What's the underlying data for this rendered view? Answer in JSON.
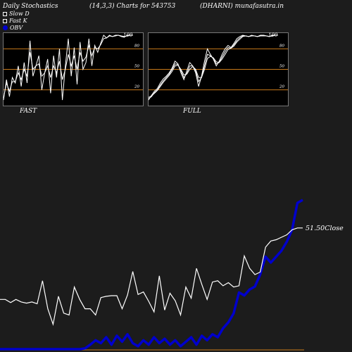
{
  "header": {
    "title": "Daily Stochastics",
    "params": "(14,3,3) Charts for 543753",
    "site": "(DHARNI) munafasutra.in"
  },
  "legend": [
    {
      "label": "Slow  D",
      "color": "#ffffff",
      "shape": "square-outline"
    },
    {
      "label": "Fast K",
      "color": "#ffffff",
      "shape": "square-outline"
    },
    {
      "label": "OBV",
      "color": "#0000cc",
      "shape": "dot"
    }
  ],
  "colors": {
    "background": "#1c1c1c",
    "panel": "#000000",
    "level_line": "#c87a1a",
    "stoch_line": "#ffffff",
    "obv_line": "#0000cc",
    "price_line": "#ffffff"
  },
  "chart_data": [
    {
      "type": "line",
      "title": "FAST",
      "ylim": [
        0,
        100
      ],
      "levels": [
        20,
        50,
        80
      ],
      "tick_labels": [
        "100",
        "80",
        "50",
        "20"
      ],
      "series": [
        {
          "values": [
            5,
            35,
            10,
            38,
            30,
            55,
            25,
            60,
            30,
            92,
            40,
            55,
            70,
            20,
            45,
            65,
            15,
            70,
            38,
            80,
            5,
            55,
            95,
            40,
            82,
            28,
            90,
            50,
            60,
            95,
            55,
            85,
            75,
            88,
            100,
            96,
            100,
            98,
            100,
            100,
            98,
            97,
            100,
            100,
            100
          ]
        },
        {
          "values": [
            8,
            30,
            18,
            32,
            32,
            45,
            35,
            50,
            40,
            75,
            50,
            55,
            58,
            40,
            45,
            55,
            38,
            55,
            45,
            62,
            35,
            50,
            72,
            55,
            70,
            50,
            75,
            62,
            68,
            85,
            70,
            82,
            80,
            86,
            95,
            96,
            99,
            98,
            99,
            100,
            99,
            98,
            99,
            100,
            100
          ]
        }
      ]
    },
    {
      "type": "line",
      "title": "FULL",
      "ylim": [
        0,
        100
      ],
      "levels": [
        20,
        50,
        80
      ],
      "tick_labels": [
        "100",
        "80",
        "50",
        "20"
      ],
      "series": [
        {
          "values": [
            5,
            12,
            18,
            22,
            30,
            36,
            40,
            45,
            52,
            62,
            58,
            45,
            35,
            48,
            60,
            55,
            45,
            25,
            40,
            62,
            80,
            72,
            65,
            55,
            62,
            72,
            80,
            85,
            82,
            88,
            95,
            98,
            100,
            99,
            98,
            100,
            99,
            98,
            100,
            100,
            99,
            98,
            100,
            100,
            100
          ]
        },
        {
          "values": [
            7,
            10,
            16,
            20,
            27,
            33,
            38,
            43,
            50,
            58,
            57,
            48,
            38,
            44,
            55,
            55,
            48,
            32,
            38,
            55,
            72,
            70,
            66,
            58,
            60,
            68,
            76,
            82,
            81,
            86,
            92,
            96,
            99,
            99,
            98,
            99,
            99,
            98,
            99,
            100,
            99,
            98,
            99,
            100,
            100
          ]
        },
        {
          "values": [
            9,
            11,
            15,
            19,
            25,
            31,
            36,
            41,
            47,
            55,
            56,
            50,
            42,
            43,
            50,
            54,
            50,
            38,
            38,
            50,
            66,
            69,
            67,
            61,
            60,
            65,
            72,
            79,
            81,
            84,
            90,
            94,
            98,
            99,
            98,
            99,
            99,
            98,
            99,
            99,
            99,
            98,
            99,
            100,
            100
          ]
        }
      ]
    },
    {
      "type": "line",
      "close_label": "51.50Close",
      "price_range": [
        32,
        56
      ],
      "obv_range": [
        0,
        100
      ],
      "series": [
        {
          "name": "Price",
          "values": [
            40,
            40,
            39.5,
            40,
            39.6,
            39.4,
            39.6,
            39.3,
            43,
            38.5,
            36,
            40.5,
            37.8,
            37.5,
            42,
            40,
            38.5,
            38.5,
            37.5,
            40.3,
            40.5,
            40.6,
            40.6,
            38.5,
            40.7,
            44.5,
            40.8,
            41.2,
            39.7,
            38,
            43.8,
            38.3,
            41,
            39.8,
            37.5,
            42,
            40.2,
            45,
            42.4,
            40,
            42.8,
            43,
            42.2,
            42.7,
            42,
            42.2,
            47,
            45,
            44,
            44.4,
            48.4,
            49.4,
            49.6,
            50,
            50.4,
            51.2,
            51.5,
            51.5
          ]
        },
        {
          "name": "OBV",
          "values": [
            0,
            0,
            0,
            0,
            0,
            0,
            0,
            0,
            0,
            0,
            0,
            0,
            0,
            0,
            0,
            0,
            0.5,
            3,
            6,
            4,
            8,
            3,
            9,
            5,
            10,
            4,
            2,
            6,
            3,
            8,
            4,
            7,
            3,
            6,
            2,
            5,
            8,
            3,
            9,
            6,
            10,
            8,
            14,
            18,
            24,
            38,
            36,
            40,
            42,
            50,
            62,
            58,
            62,
            66,
            72,
            80,
            98,
            100
          ]
        }
      ]
    }
  ]
}
